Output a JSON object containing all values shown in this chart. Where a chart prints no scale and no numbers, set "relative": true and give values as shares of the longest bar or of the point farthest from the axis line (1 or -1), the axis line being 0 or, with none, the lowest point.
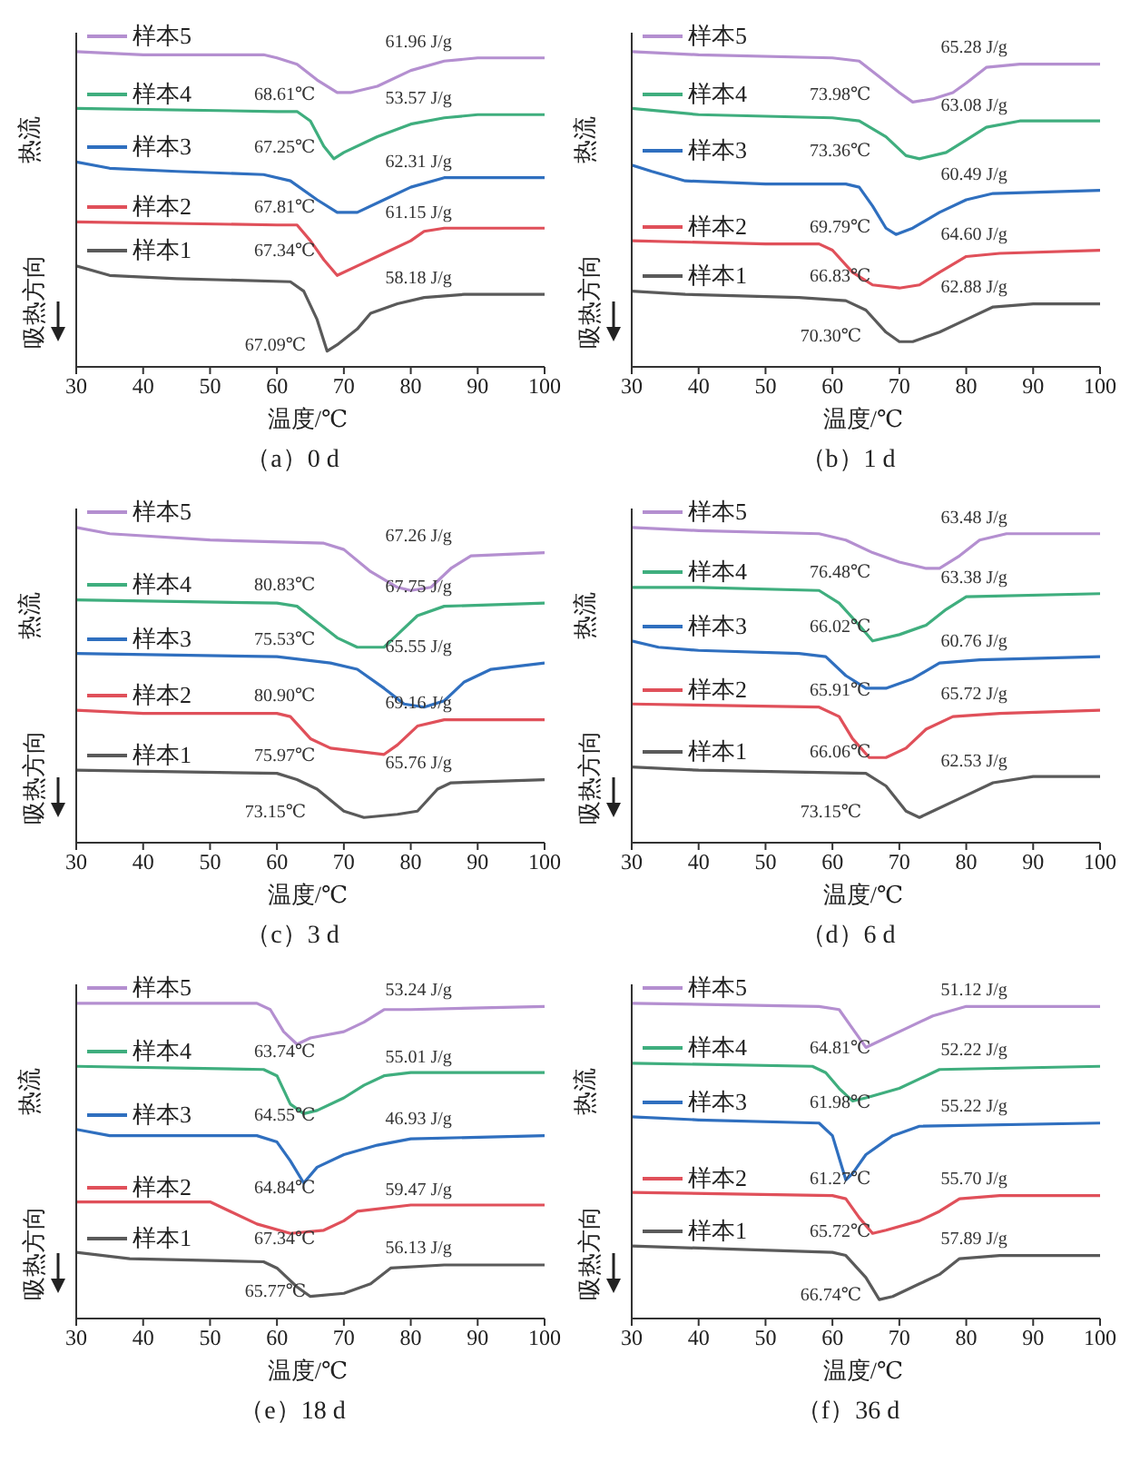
{
  "chart_data": [
    {
      "type": "line",
      "title": "（a）0 d",
      "xlabel": "温度/℃",
      "ylabel": "热流",
      "relative": true,
      "legend": "top left",
      "xlim": [
        30,
        100
      ],
      "xticks": [
        30,
        40,
        50,
        60,
        70,
        80,
        90,
        100
      ],
      "series": [
        {
          "name": "样本1",
          "color": "#5a5a5a",
          "x": [
            30,
            35,
            45,
            62,
            64,
            66,
            67.5,
            69,
            72,
            74,
            78,
            82,
            88,
            100
          ],
          "values": [
            0.32,
            0.29,
            0.28,
            0.27,
            0.24,
            0.15,
            0.05,
            0.07,
            0.12,
            0.17,
            0.2,
            0.22,
            0.23,
            0.23
          ]
        },
        {
          "name": "样本2",
          "color": "#e0505a",
          "x": [
            30,
            60,
            63,
            65,
            67,
            69,
            72,
            76,
            80,
            82,
            85,
            100
          ],
          "values": [
            0.46,
            0.45,
            0.45,
            0.4,
            0.34,
            0.29,
            0.32,
            0.36,
            0.4,
            0.43,
            0.44,
            0.44
          ]
        },
        {
          "name": "样本3",
          "color": "#2f6fbf",
          "x": [
            30,
            35,
            45,
            58,
            62,
            66,
            69,
            72,
            76,
            80,
            85,
            100
          ],
          "values": [
            0.65,
            0.63,
            0.62,
            0.61,
            0.59,
            0.53,
            0.49,
            0.49,
            0.53,
            0.57,
            0.6,
            0.6
          ]
        },
        {
          "name": "样本4",
          "color": "#3fae7e",
          "x": [
            30,
            60,
            63,
            65,
            67,
            68.5,
            70,
            75,
            80,
            85,
            90,
            100
          ],
          "values": [
            0.82,
            0.81,
            0.81,
            0.78,
            0.7,
            0.66,
            0.68,
            0.73,
            0.77,
            0.79,
            0.8,
            0.8
          ]
        },
        {
          "name": "样本5",
          "color": "#b48fd0",
          "x": [
            30,
            40,
            50,
            58,
            60,
            63,
            66,
            69,
            71,
            75,
            80,
            85,
            90,
            100
          ],
          "values": [
            1.0,
            0.99,
            0.99,
            0.99,
            0.98,
            0.96,
            0.91,
            0.87,
            0.87,
            0.89,
            0.94,
            0.97,
            0.98,
            0.98
          ]
        }
      ],
      "annotations": [
        "吸热方向",
        "61.96 J/g",
        "68.61℃",
        "53.57 J/g",
        "67.25℃",
        "62.31 J/g",
        "67.81℃",
        "61.15 J/g",
        "67.34℃",
        "58.18 J/g",
        "67.09℃"
      ]
    },
    {
      "type": "line",
      "title": "（b）1 d",
      "xlabel": "温度/℃",
      "ylabel": "热流",
      "relative": true,
      "legend": "top left",
      "xlim": [
        30,
        100
      ],
      "xticks": [
        30,
        40,
        50,
        60,
        70,
        80,
        90,
        100
      ],
      "series": [
        {
          "name": "样本1",
          "color": "#5a5a5a",
          "x": [
            30,
            38,
            55,
            62,
            65,
            68,
            70,
            72,
            76,
            80,
            84,
            90,
            100
          ],
          "values": [
            0.24,
            0.23,
            0.22,
            0.21,
            0.18,
            0.11,
            0.08,
            0.08,
            0.11,
            0.15,
            0.19,
            0.2,
            0.2
          ]
        },
        {
          "name": "样本2",
          "color": "#e0505a",
          "x": [
            30,
            50,
            58,
            60,
            63,
            66,
            70,
            73,
            76,
            80,
            85,
            100
          ],
          "values": [
            0.4,
            0.39,
            0.39,
            0.37,
            0.3,
            0.26,
            0.25,
            0.26,
            0.3,
            0.35,
            0.36,
            0.37
          ]
        },
        {
          "name": "样本3",
          "color": "#2f6fbf",
          "x": [
            30,
            33,
            38,
            50,
            62,
            64,
            66,
            68,
            69.5,
            72,
            76,
            80,
            84,
            100
          ],
          "values": [
            0.64,
            0.62,
            0.59,
            0.58,
            0.58,
            0.57,
            0.51,
            0.44,
            0.42,
            0.44,
            0.49,
            0.53,
            0.55,
            0.56
          ]
        },
        {
          "name": "样本4",
          "color": "#3fae7e",
          "x": [
            30,
            40,
            60,
            64,
            68,
            71,
            73,
            77,
            80,
            83,
            88,
            100
          ],
          "values": [
            0.82,
            0.8,
            0.79,
            0.78,
            0.73,
            0.67,
            0.66,
            0.68,
            0.72,
            0.76,
            0.78,
            0.78
          ]
        },
        {
          "name": "样本5",
          "color": "#b48fd0",
          "x": [
            30,
            40,
            60,
            64,
            67,
            70,
            72,
            75,
            78,
            80,
            83,
            88,
            100
          ],
          "values": [
            1.0,
            0.99,
            0.98,
            0.97,
            0.92,
            0.87,
            0.84,
            0.85,
            0.87,
            0.9,
            0.95,
            0.96,
            0.96
          ]
        }
      ],
      "annotations": [
        "吸热方向",
        "65.28 J/g",
        "73.98℃",
        "63.08 J/g",
        "73.36℃",
        "60.49 J/g",
        "69.79℃",
        "64.60 J/g",
        "66.83℃",
        "62.88 J/g",
        "70.30℃"
      ]
    },
    {
      "type": "line",
      "title": "（c）3 d",
      "xlabel": "温度/℃",
      "ylabel": "热流",
      "relative": true,
      "legend": "top left",
      "xlim": [
        30,
        100
      ],
      "xticks": [
        30,
        40,
        50,
        60,
        70,
        80,
        90,
        100
      ],
      "series": [
        {
          "name": "样本1",
          "color": "#5a5a5a",
          "x": [
            30,
            60,
            63,
            66,
            70,
            73,
            78,
            81,
            84,
            86,
            100
          ],
          "values": [
            0.23,
            0.22,
            0.2,
            0.17,
            0.1,
            0.08,
            0.09,
            0.1,
            0.17,
            0.19,
            0.2
          ]
        },
        {
          "name": "样本2",
          "color": "#e0505a",
          "x": [
            30,
            40,
            60,
            62,
            65,
            68,
            72,
            76,
            78,
            81,
            85,
            100
          ],
          "values": [
            0.42,
            0.41,
            0.41,
            0.4,
            0.33,
            0.3,
            0.29,
            0.28,
            0.31,
            0.37,
            0.39,
            0.39
          ]
        },
        {
          "name": "样本3",
          "color": "#2f6fbf",
          "x": [
            30,
            60,
            68,
            72,
            76,
            79,
            82,
            85,
            88,
            92,
            100
          ],
          "values": [
            0.6,
            0.59,
            0.57,
            0.55,
            0.49,
            0.44,
            0.43,
            0.45,
            0.51,
            0.55,
            0.57
          ]
        },
        {
          "name": "样本4",
          "color": "#3fae7e",
          "x": [
            30,
            60,
            63,
            66,
            69,
            72,
            76,
            78,
            81,
            85,
            100
          ],
          "values": [
            0.77,
            0.76,
            0.75,
            0.7,
            0.65,
            0.62,
            0.62,
            0.66,
            0.72,
            0.75,
            0.76
          ]
        },
        {
          "name": "样本5",
          "color": "#b48fd0",
          "x": [
            30,
            35,
            50,
            67,
            70,
            74,
            78,
            80,
            83,
            86,
            89,
            100
          ],
          "values": [
            1.0,
            0.98,
            0.96,
            0.95,
            0.93,
            0.86,
            0.81,
            0.8,
            0.81,
            0.87,
            0.91,
            0.92
          ]
        }
      ],
      "annotations": [
        "吸热方向",
        "67.26 J/g",
        "80.83℃",
        "67.75 J/g",
        "75.53℃",
        "65.55 J/g",
        "80.90℃",
        "69.16 J/g",
        "75.97℃",
        "65.76 J/g",
        "73.15℃"
      ]
    },
    {
      "type": "line",
      "title": "（d）6 d",
      "xlabel": "温度/℃",
      "ylabel": "热流",
      "relative": true,
      "legend": "top left",
      "xlim": [
        30,
        100
      ],
      "xticks": [
        30,
        40,
        50,
        60,
        70,
        80,
        90,
        100
      ],
      "series": [
        {
          "name": "样本1",
          "color": "#5a5a5a",
          "x": [
            30,
            40,
            65,
            68,
            71,
            73,
            75,
            79,
            84,
            90,
            100
          ],
          "values": [
            0.24,
            0.23,
            0.22,
            0.18,
            0.1,
            0.08,
            0.1,
            0.14,
            0.19,
            0.21,
            0.21
          ]
        },
        {
          "name": "样本2",
          "color": "#e0505a",
          "x": [
            30,
            58,
            61,
            63,
            65.5,
            68,
            71,
            74,
            78,
            85,
            100
          ],
          "values": [
            0.44,
            0.43,
            0.4,
            0.33,
            0.27,
            0.27,
            0.3,
            0.36,
            0.4,
            0.41,
            0.42
          ]
        },
        {
          "name": "样本3",
          "color": "#2f6fbf",
          "x": [
            30,
            34,
            40,
            55,
            59,
            62,
            65,
            68,
            72,
            76,
            82,
            100
          ],
          "values": [
            0.64,
            0.62,
            0.61,
            0.6,
            0.59,
            0.53,
            0.49,
            0.49,
            0.52,
            0.57,
            0.58,
            0.59
          ]
        },
        {
          "name": "样本4",
          "color": "#3fae7e",
          "x": [
            30,
            40,
            58,
            61,
            64,
            66,
            70,
            74,
            77,
            80,
            100
          ],
          "values": [
            0.81,
            0.81,
            0.8,
            0.76,
            0.69,
            0.64,
            0.66,
            0.69,
            0.74,
            0.78,
            0.79
          ]
        },
        {
          "name": "样本5",
          "color": "#b48fd0",
          "x": [
            30,
            40,
            58,
            62,
            66,
            70,
            74,
            76,
            79,
            82,
            86,
            100
          ],
          "values": [
            1.0,
            0.99,
            0.98,
            0.96,
            0.92,
            0.89,
            0.87,
            0.87,
            0.91,
            0.96,
            0.98,
            0.98
          ]
        }
      ],
      "annotations": [
        "吸热方向",
        "63.48 J/g",
        "76.48℃",
        "63.38 J/g",
        "66.02℃",
        "60.76 J/g",
        "65.91℃",
        "65.72 J/g",
        "66.06℃",
        "62.53 J/g",
        "73.15℃"
      ]
    },
    {
      "type": "line",
      "title": "（e）18 d",
      "xlabel": "温度/℃",
      "ylabel": "热流",
      "relative": true,
      "legend": "top left",
      "xlim": [
        30,
        100
      ],
      "xticks": [
        30,
        40,
        50,
        60,
        70,
        80,
        90,
        100
      ],
      "series": [
        {
          "name": "样本1",
          "color": "#5a5a5a",
          "x": [
            30,
            38,
            58,
            60,
            63,
            65,
            70,
            74,
            77,
            85,
            100
          ],
          "values": [
            0.21,
            0.19,
            0.18,
            0.16,
            0.1,
            0.07,
            0.08,
            0.11,
            0.16,
            0.17,
            0.17
          ]
        },
        {
          "name": "样本2",
          "color": "#e0505a",
          "x": [
            30,
            50,
            53,
            57,
            62,
            67,
            70,
            72,
            80,
            100
          ],
          "values": [
            0.37,
            0.37,
            0.34,
            0.3,
            0.27,
            0.28,
            0.31,
            0.34,
            0.36,
            0.36
          ]
        },
        {
          "name": "样本3",
          "color": "#2f6fbf",
          "x": [
            30,
            35,
            57,
            60,
            62,
            64,
            66,
            70,
            75,
            80,
            100
          ],
          "values": [
            0.6,
            0.58,
            0.58,
            0.56,
            0.5,
            0.43,
            0.48,
            0.52,
            0.55,
            0.57,
            0.58
          ]
        },
        {
          "name": "样本4",
          "color": "#3fae7e",
          "x": [
            30,
            58,
            60,
            62,
            64,
            66,
            70,
            73,
            76,
            80,
            100
          ],
          "values": [
            0.8,
            0.79,
            0.77,
            0.68,
            0.65,
            0.66,
            0.7,
            0.74,
            0.77,
            0.78,
            0.78
          ]
        },
        {
          "name": "样本5",
          "color": "#b48fd0",
          "x": [
            30,
            57,
            59,
            61,
            63,
            65,
            70,
            73,
            76,
            80,
            100
          ],
          "values": [
            1.0,
            1.0,
            0.98,
            0.91,
            0.87,
            0.89,
            0.91,
            0.94,
            0.98,
            0.98,
            0.99
          ]
        }
      ],
      "annotations": [
        "吸热方向",
        "53.24 J/g",
        "63.74℃",
        "55.01 J/g",
        "64.55℃",
        "46.93 J/g",
        "64.84℃",
        "59.47 J/g",
        "67.34℃",
        "56.13 J/g",
        "65.77℃"
      ]
    },
    {
      "type": "line",
      "title": "（f）36 d",
      "xlabel": "温度/℃",
      "ylabel": "热流",
      "relative": true,
      "legend": "top left",
      "xlim": [
        30,
        100
      ],
      "xticks": [
        30,
        40,
        50,
        60,
        70,
        80,
        90,
        100
      ],
      "series": [
        {
          "name": "样本1",
          "color": "#5a5a5a",
          "x": [
            30,
            60,
            62,
            65,
            67,
            69,
            73,
            76,
            79,
            85,
            100
          ],
          "values": [
            0.23,
            0.21,
            0.2,
            0.13,
            0.06,
            0.07,
            0.11,
            0.14,
            0.19,
            0.2,
            0.2
          ]
        },
        {
          "name": "样本2",
          "color": "#e0505a",
          "x": [
            30,
            60,
            62,
            64,
            66,
            68,
            73,
            76,
            79,
            85,
            100
          ],
          "values": [
            0.4,
            0.39,
            0.38,
            0.32,
            0.27,
            0.28,
            0.31,
            0.34,
            0.38,
            0.39,
            0.39
          ]
        },
        {
          "name": "样本3",
          "color": "#2f6fbf",
          "x": [
            30,
            40,
            58,
            60,
            61,
            62,
            63,
            65,
            69,
            73,
            100
          ],
          "values": [
            0.64,
            0.63,
            0.62,
            0.58,
            0.51,
            0.44,
            0.46,
            0.52,
            0.58,
            0.61,
            0.62
          ]
        },
        {
          "name": "样本4",
          "color": "#3fae7e",
          "x": [
            30,
            57,
            59,
            61,
            63,
            65,
            70,
            73,
            76,
            100
          ],
          "values": [
            0.81,
            0.8,
            0.78,
            0.73,
            0.69,
            0.7,
            0.73,
            0.76,
            0.79,
            0.8
          ]
        },
        {
          "name": "样本5",
          "color": "#b48fd0",
          "x": [
            30,
            58,
            61,
            63,
            65,
            67,
            71,
            75,
            80,
            100
          ],
          "values": [
            1.0,
            0.99,
            0.98,
            0.92,
            0.86,
            0.88,
            0.92,
            0.96,
            0.99,
            0.99
          ]
        }
      ],
      "annotations": [
        "吸热方向",
        "51.12 J/g",
        "64.81℃",
        "52.22 J/g",
        "61.98℃",
        "55.22 J/g",
        "61.27℃",
        "55.70 J/g",
        "65.72℃",
        "57.89 J/g",
        "66.74℃"
      ]
    }
  ]
}
